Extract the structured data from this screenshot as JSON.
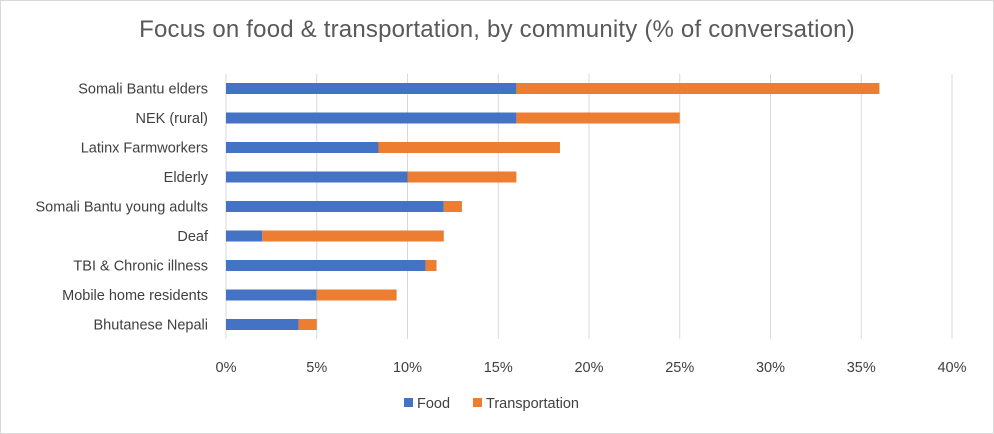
{
  "chart_data": {
    "type": "bar",
    "orientation": "horizontal",
    "stacked": true,
    "title": "Focus on food & transportation, by community (% of conversation)",
    "categories": [
      "Somali Bantu elders",
      "NEK (rural)",
      "Latinx Farmworkers",
      "Elderly",
      "Somali Bantu young adults",
      "Deaf",
      "TBI & Chronic illness",
      "Mobile home residents",
      "Bhutanese Nepali"
    ],
    "series": [
      {
        "name": "Food",
        "color": "#4472C4",
        "values": [
          16,
          16,
          8.4,
          10,
          12,
          2,
          11,
          5,
          4
        ]
      },
      {
        "name": "Transportation",
        "color": "#ED7D31",
        "values": [
          20,
          9,
          10,
          6,
          1,
          10,
          0.6,
          4.4,
          1
        ]
      }
    ],
    "xlim": [
      0,
      40
    ],
    "xticks": [
      "0%",
      "5%",
      "10%",
      "15%",
      "20%",
      "25%",
      "30%",
      "35%",
      "40%"
    ],
    "grid": true,
    "legend": "bottom",
    "xlabel": "",
    "ylabel": ""
  }
}
